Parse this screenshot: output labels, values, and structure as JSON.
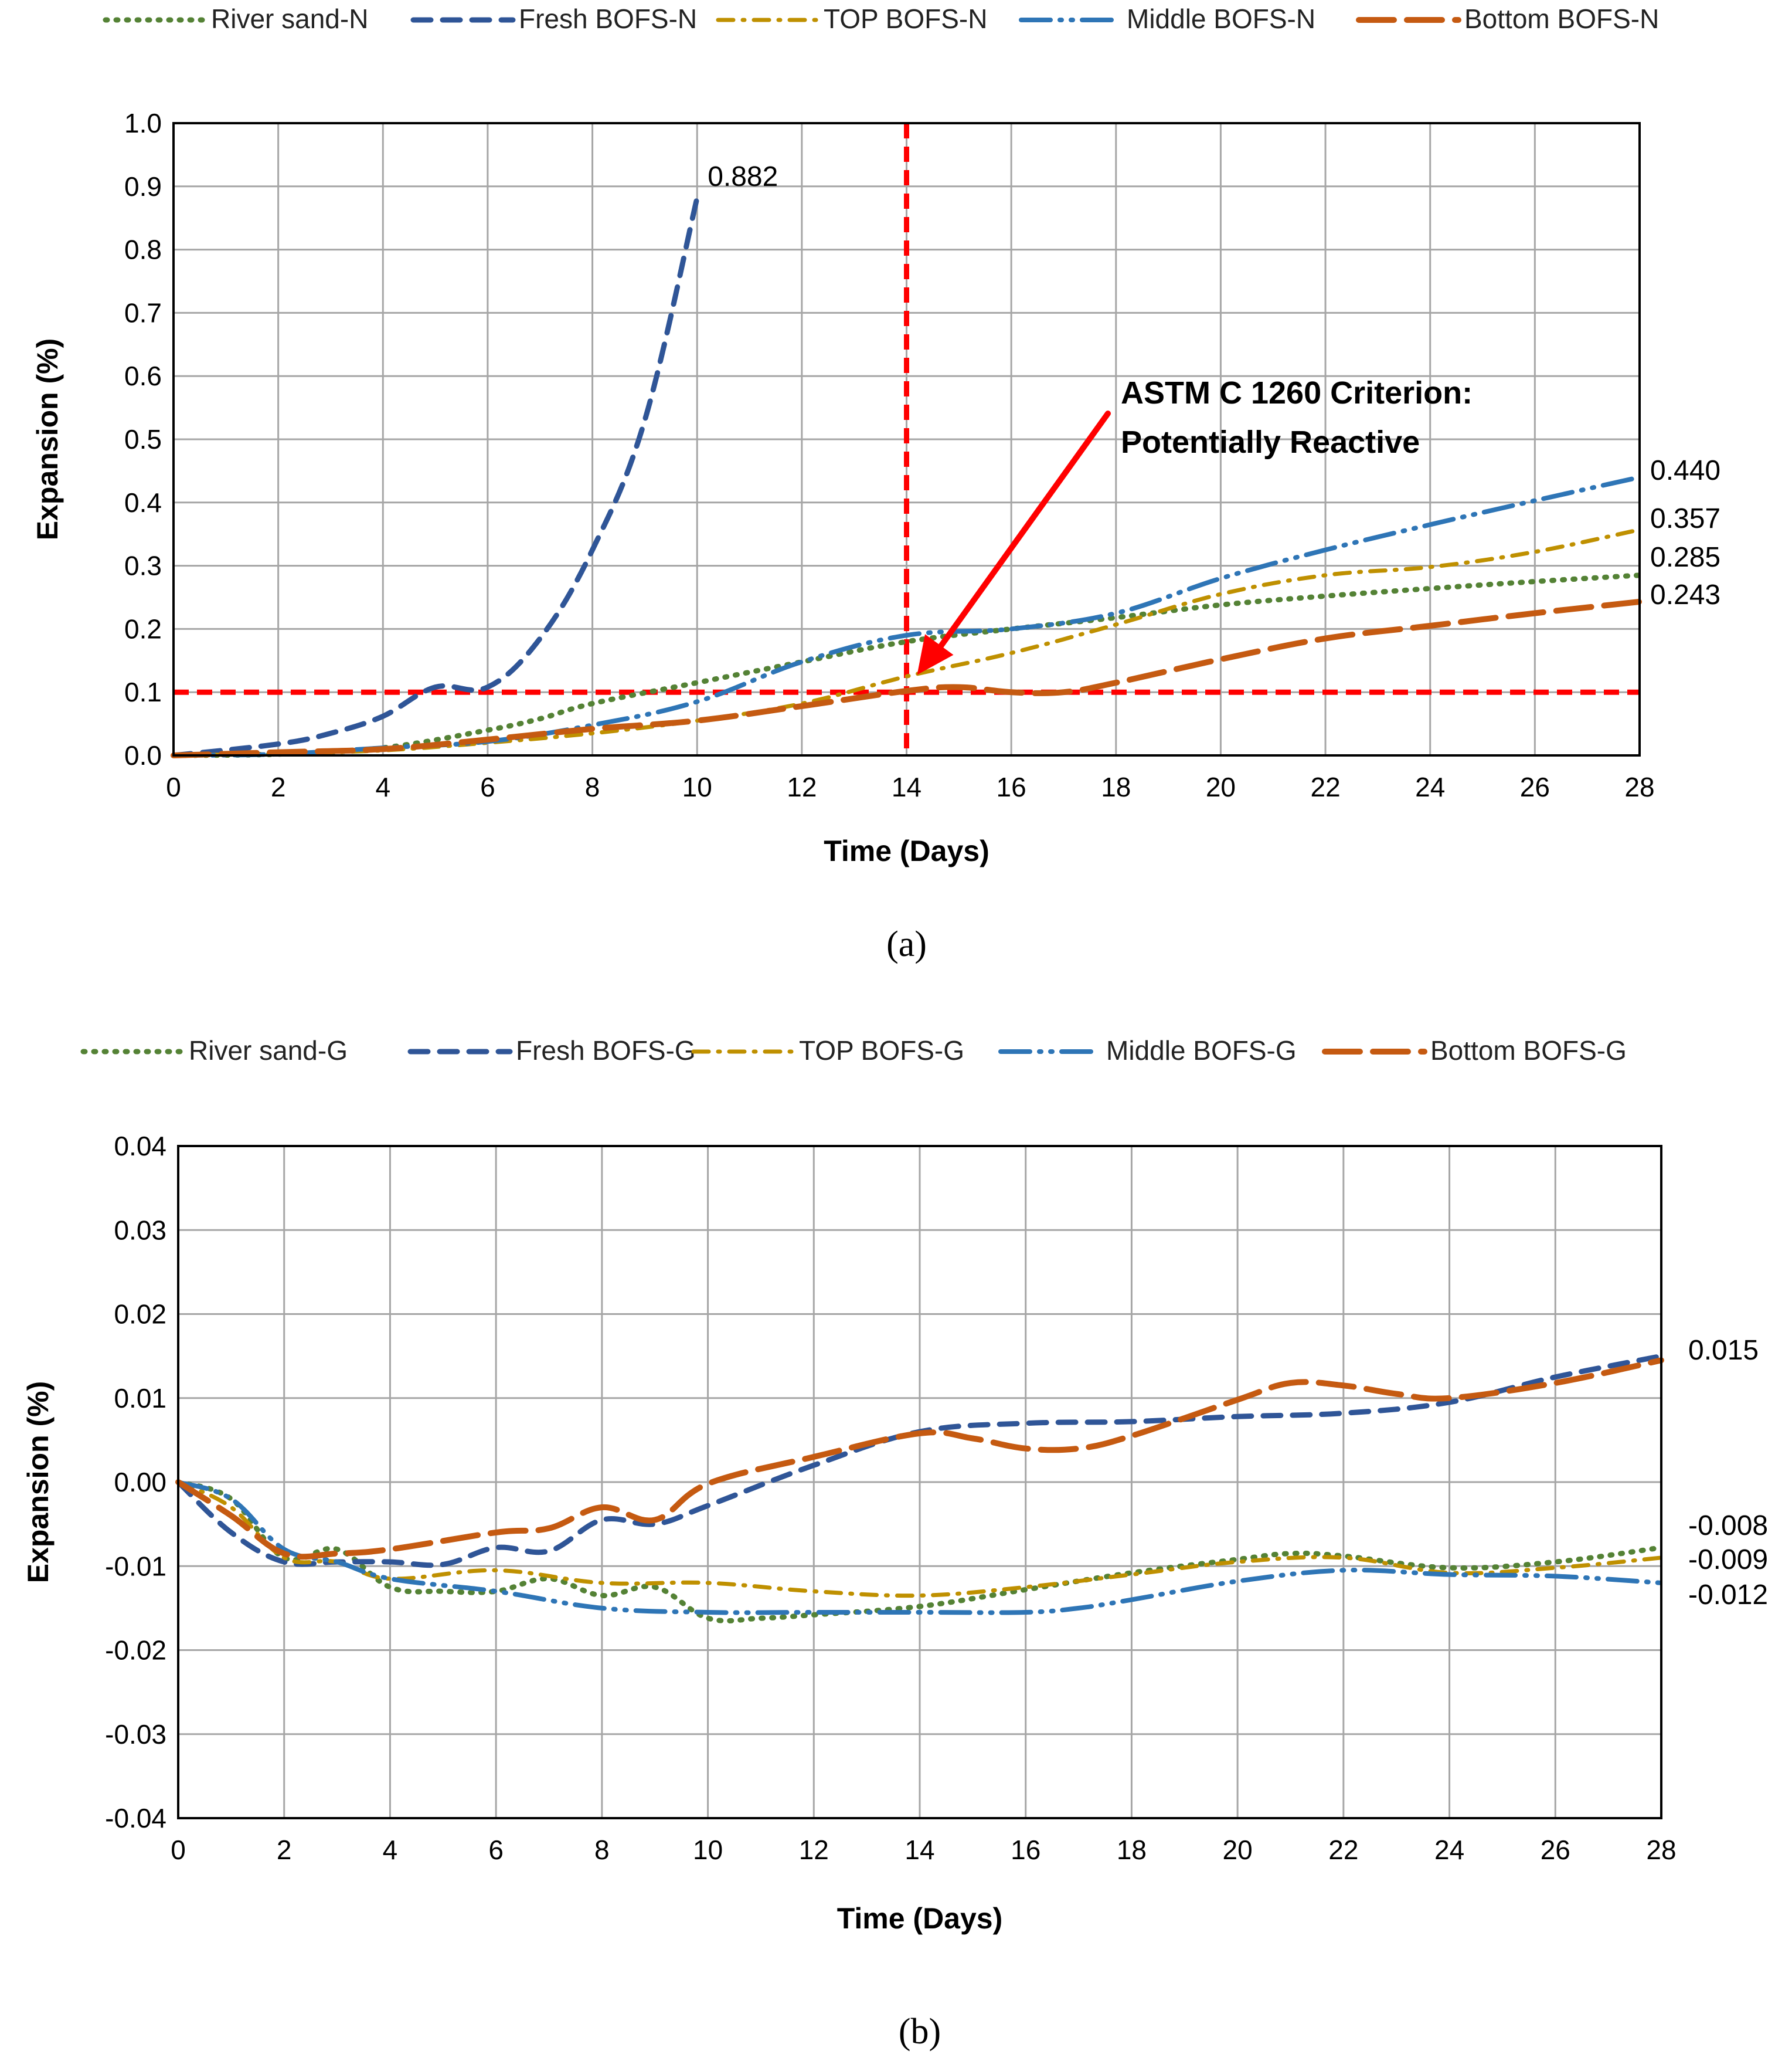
{
  "colors": {
    "river_sand": "#548235",
    "fresh": "#2F5597",
    "top": "#BF9000",
    "middle": "#2E75B6",
    "bottom": "#C55A11",
    "criterion": "#FF0000",
    "grid": "#A6A6A6"
  },
  "chart_data": [
    {
      "type": "line",
      "panel_label": "(a)",
      "xlabel": "Time (Days)",
      "ylabel": "Expansion (%)",
      "xlim": [
        0,
        28
      ],
      "ylim": [
        0,
        1.0
      ],
      "xticks": [
        0,
        2,
        4,
        6,
        8,
        10,
        12,
        14,
        16,
        18,
        20,
        22,
        24,
        26,
        28
      ],
      "yticks": [
        0.0,
        0.1,
        0.2,
        0.3,
        0.4,
        0.5,
        0.6,
        0.7,
        0.8,
        0.9,
        1.0
      ],
      "ytick_labels": [
        "0.0",
        "0.1",
        "0.2",
        "0.3",
        "0.4",
        "0.5",
        "0.6",
        "0.7",
        "0.8",
        "0.9",
        "1.0"
      ],
      "grid": true,
      "legend_position": "top",
      "series": [
        {
          "name": "River sand-N",
          "style": "dot",
          "color_key": "river_sand",
          "x": [
            0,
            2,
            4,
            6,
            7,
            8,
            10,
            12,
            14,
            16,
            18,
            20,
            22,
            24,
            26,
            28
          ],
          "y": [
            0,
            0.002,
            0.012,
            0.04,
            0.058,
            0.082,
            0.115,
            0.148,
            0.18,
            0.2,
            0.218,
            0.238,
            0.252,
            0.264,
            0.275,
            0.285
          ],
          "end_label": "0.285"
        },
        {
          "name": "Fresh BOFS-N",
          "style": "dash",
          "color_key": "fresh",
          "x": [
            0,
            2,
            3,
            4,
            5,
            6,
            7,
            8,
            9,
            10
          ],
          "y": [
            0,
            0.018,
            0.035,
            0.062,
            0.108,
            0.108,
            0.185,
            0.325,
            0.53,
            0.882
          ],
          "end_label": "0.882"
        },
        {
          "name": "TOP BOFS-N",
          "style": "dashdot",
          "color_key": "top",
          "x": [
            0,
            2,
            4,
            6,
            8,
            10,
            12,
            14,
            16,
            18,
            20,
            22,
            24,
            26,
            28
          ],
          "y": [
            0,
            0.003,
            0.008,
            0.02,
            0.035,
            0.055,
            0.082,
            0.125,
            0.162,
            0.207,
            0.255,
            0.285,
            0.298,
            0.322,
            0.357
          ],
          "end_label": "0.357"
        },
        {
          "name": "Middle BOFS-N",
          "style": "longdashdotdot",
          "color_key": "middle",
          "x": [
            0,
            2,
            4,
            6,
            8,
            10,
            12,
            14,
            16,
            18,
            20,
            22,
            24,
            26,
            28
          ],
          "y": [
            0,
            0.002,
            0.012,
            0.022,
            0.048,
            0.085,
            0.148,
            0.19,
            0.2,
            0.225,
            0.28,
            0.325,
            0.365,
            0.403,
            0.44
          ],
          "end_label": "0.440"
        },
        {
          "name": "Bottom BOFS-N",
          "style": "longdash",
          "color_key": "bottom",
          "x": [
            0,
            2,
            4,
            6,
            8,
            10,
            12,
            14,
            15,
            16,
            17,
            18,
            20,
            22,
            24,
            26,
            28
          ],
          "y": [
            0,
            0.005,
            0.01,
            0.025,
            0.042,
            0.055,
            0.078,
            0.102,
            0.108,
            0.1,
            0.1,
            0.115,
            0.152,
            0.185,
            0.205,
            0.225,
            0.243
          ],
          "end_label": "0.243"
        }
      ],
      "criterion_lines": {
        "x": 14,
        "y": 0.1
      },
      "annotation": {
        "lines": [
          "ASTM C 1260 Criterion:",
          "Potentially Reactive"
        ],
        "arrow_to": {
          "x": 14,
          "y": 0.12
        }
      }
    },
    {
      "type": "line",
      "panel_label": "(b)",
      "xlabel": "Time (Days)",
      "ylabel": "Expansion (%)",
      "xlim": [
        0,
        28
      ],
      "ylim": [
        -0.04,
        0.04
      ],
      "xticks": [
        0,
        2,
        4,
        6,
        8,
        10,
        12,
        14,
        16,
        18,
        20,
        22,
        24,
        26,
        28
      ],
      "yticks": [
        -0.04,
        -0.03,
        -0.02,
        -0.01,
        0.0,
        0.01,
        0.02,
        0.03,
        0.04
      ],
      "ytick_labels": [
        "-0.04",
        "-0.03",
        "-0.02",
        "-0.01",
        "0.00",
        "0.01",
        "0.02",
        "0.03",
        "0.04"
      ],
      "grid": true,
      "legend_position": "top",
      "series": [
        {
          "name": "River sand-G",
          "style": "dot",
          "color_key": "river_sand",
          "x": [
            0,
            1,
            2,
            3,
            4,
            5,
            6,
            7,
            8,
            9,
            10,
            11,
            12,
            14,
            16,
            18,
            20,
            21,
            22,
            24,
            26,
            28
          ],
          "y": [
            0,
            -0.002,
            -0.009,
            -0.008,
            -0.0125,
            -0.013,
            -0.013,
            -0.0115,
            -0.0135,
            -0.0125,
            -0.0162,
            -0.0162,
            -0.0158,
            -0.0148,
            -0.0128,
            -0.0108,
            -0.0092,
            -0.0085,
            -0.0088,
            -0.0102,
            -0.0095,
            -0.0078
          ],
          "end_label": "-0.008"
        },
        {
          "name": "Fresh BOFS-G",
          "style": "dash",
          "color_key": "fresh",
          "x": [
            0,
            1,
            2,
            3,
            4,
            5,
            6,
            7,
            8,
            9,
            10,
            12,
            14,
            16,
            18,
            20,
            22,
            24,
            26,
            28
          ],
          "y": [
            0,
            -0.006,
            -0.0095,
            -0.0095,
            -0.0095,
            -0.0098,
            -0.0078,
            -0.0082,
            -0.0045,
            -0.005,
            -0.0028,
            0.002,
            0.006,
            0.007,
            0.0072,
            0.0078,
            0.0082,
            0.0095,
            0.0125,
            0.015
          ],
          "end_label": "0.015"
        },
        {
          "name": "TOP BOFS-G",
          "style": "dashdot",
          "color_key": "top",
          "x": [
            0,
            1,
            2,
            3,
            4,
            6,
            8,
            10,
            12,
            14,
            16,
            18,
            20,
            22,
            24,
            26,
            28
          ],
          "y": [
            0,
            -0.003,
            -0.009,
            -0.0095,
            -0.0115,
            -0.0105,
            -0.012,
            -0.012,
            -0.013,
            -0.0135,
            -0.0125,
            -0.011,
            -0.0095,
            -0.009,
            -0.0108,
            -0.0102,
            -0.009
          ],
          "end_label": "-0.009"
        },
        {
          "name": "Middle BOFS-G",
          "style": "longdashdotdot",
          "color_key": "middle",
          "x": [
            0,
            1,
            2,
            3,
            4,
            6,
            8,
            10,
            12,
            14,
            16,
            17,
            18,
            20,
            22,
            24,
            26,
            28
          ],
          "y": [
            0,
            -0.002,
            -0.008,
            -0.0095,
            -0.0115,
            -0.013,
            -0.015,
            -0.0155,
            -0.0155,
            -0.0155,
            -0.0155,
            -0.015,
            -0.014,
            -0.0118,
            -0.0105,
            -0.011,
            -0.0112,
            -0.012
          ],
          "end_label": "-0.012"
        },
        {
          "name": "Bottom BOFS-G",
          "style": "longdash",
          "color_key": "bottom",
          "x": [
            0,
            1,
            2,
            3,
            4,
            6,
            7,
            8,
            9,
            10,
            12,
            14,
            15,
            16,
            17,
            18,
            20,
            21,
            22,
            23,
            24,
            26,
            28
          ],
          "y": [
            0,
            -0.004,
            -0.0085,
            -0.0085,
            -0.008,
            -0.006,
            -0.0055,
            -0.003,
            -0.0045,
            -0.0002,
            0.003,
            0.0058,
            0.0052,
            0.004,
            0.004,
            0.0055,
            0.0098,
            0.0118,
            0.0115,
            0.0105,
            0.01,
            0.0118,
            0.0145
          ],
          "end_label": null
        }
      ]
    }
  ]
}
